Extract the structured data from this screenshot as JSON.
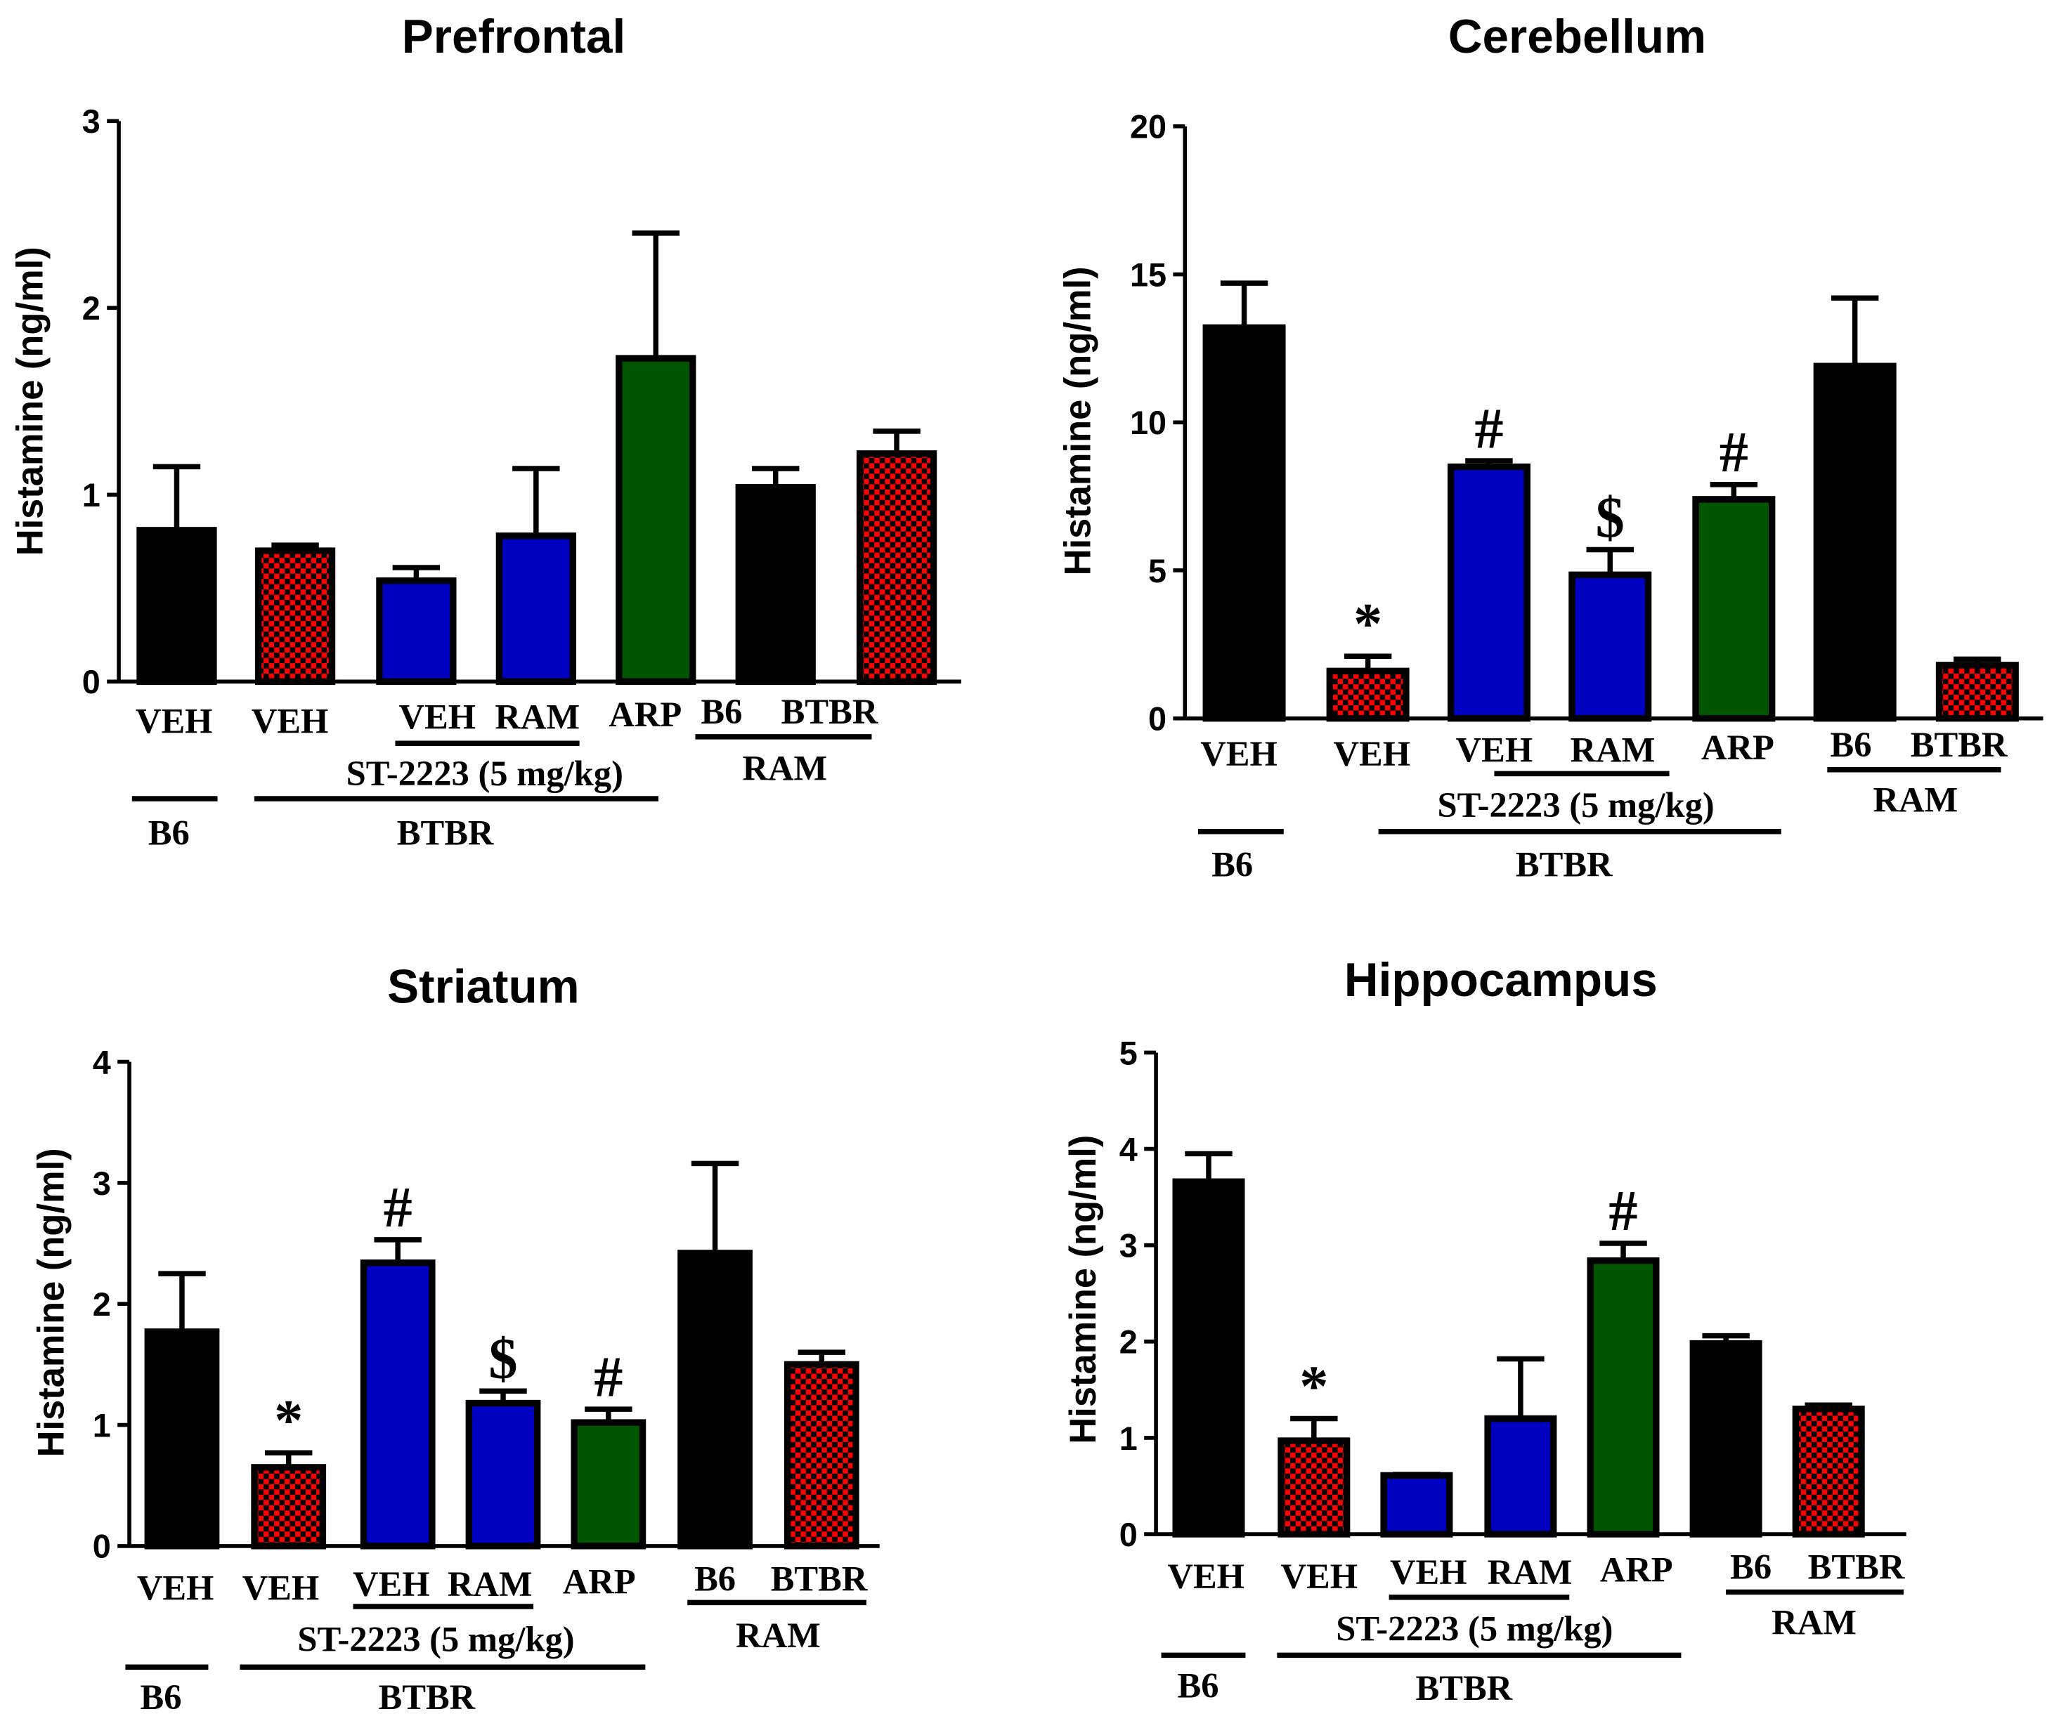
{
  "colors": {
    "black": "#000000",
    "checker_red": "#ff0000",
    "blue": "#0000c0",
    "green": "#005500"
  },
  "chart_data": [
    {
      "type": "bar",
      "title": "Prefrontal",
      "ylabel": "Histamine (ng/ml)",
      "ylim": [
        0,
        3
      ],
      "yticks": [
        0,
        1,
        2,
        3
      ],
      "categories": [
        "VEH",
        "VEH",
        "VEH",
        "RAM",
        "ARP",
        "B6",
        "BTBR"
      ],
      "fills": [
        "black",
        "checker_red",
        "blue",
        "blue",
        "green",
        "black",
        "checker_red"
      ],
      "values": [
        0.81,
        0.7,
        0.54,
        0.78,
        1.73,
        1.04,
        1.22
      ],
      "error_upper": [
        1.15,
        0.73,
        0.61,
        1.14,
        2.4,
        1.14,
        1.34
      ],
      "annotations": [
        "",
        "",
        "",
        "",
        "",
        "",
        ""
      ],
      "group_labels": {
        "st": "ST-2223 (5 mg/kg)",
        "ram": "RAM",
        "b6": "B6",
        "btbr": "BTBR"
      }
    },
    {
      "type": "bar",
      "title": "Cerebellum",
      "ylabel": "Histamine (ng/ml)",
      "ylim": [
        0,
        20
      ],
      "yticks": [
        0,
        5,
        10,
        15,
        20
      ],
      "categories": [
        "VEH",
        "VEH",
        "VEH",
        "RAM",
        "ARP",
        "B6",
        "BTBR"
      ],
      "fills": [
        "black",
        "checker_red",
        "blue",
        "blue",
        "green",
        "black",
        "checker_red"
      ],
      "values": [
        13.2,
        1.6,
        8.5,
        4.85,
        7.4,
        11.9,
        1.8
      ],
      "error_upper": [
        14.7,
        2.1,
        8.7,
        5.7,
        7.9,
        14.2,
        2.0
      ],
      "annotations": [
        "",
        "*",
        "#",
        "$",
        "#",
        "",
        ""
      ],
      "group_labels": {
        "st": "ST-2223 (5 mg/kg)",
        "ram": "RAM",
        "b6": "B6",
        "btbr": "BTBR"
      }
    },
    {
      "type": "bar",
      "title": "Striatum",
      "ylabel": "Histamine (ng/ml)",
      "ylim": [
        0,
        4
      ],
      "yticks": [
        0,
        1,
        2,
        3,
        4
      ],
      "categories": [
        "VEH",
        "VEH",
        "VEH",
        "RAM",
        "ARP",
        "B6",
        "BTBR"
      ],
      "fills": [
        "black",
        "checker_red",
        "blue",
        "blue",
        "green",
        "black",
        "checker_red"
      ],
      "values": [
        1.77,
        0.65,
        2.34,
        1.18,
        1.02,
        2.42,
        1.5
      ],
      "error_upper": [
        2.25,
        0.77,
        2.53,
        1.28,
        1.13,
        3.16,
        1.6
      ],
      "annotations": [
        "",
        "*",
        "#",
        "$",
        "#",
        "",
        ""
      ],
      "group_labels": {
        "st": "ST-2223 (5 mg/kg)",
        "ram": "RAM",
        "b6": "B6",
        "btbr": "BTBR"
      }
    },
    {
      "type": "bar",
      "title": "Hippocampus",
      "ylabel": "Histamine (ng/ml)",
      "ylim": [
        0,
        5
      ],
      "yticks": [
        0,
        1,
        2,
        3,
        4,
        5
      ],
      "categories": [
        "VEH",
        "VEH",
        "VEH",
        "RAM",
        "ARP",
        "B6",
        "BTBR"
      ],
      "fills": [
        "black",
        "checker_red",
        "blue",
        "blue",
        "green",
        "black",
        "checker_red"
      ],
      "values": [
        3.66,
        0.97,
        0.61,
        1.2,
        2.84,
        1.98,
        1.3
      ],
      "error_upper": [
        3.95,
        1.2,
        0.62,
        1.82,
        3.02,
        2.06,
        1.34
      ],
      "annotations": [
        "",
        "*",
        "",
        "",
        "#",
        "",
        ""
      ],
      "group_labels": {
        "st": "ST-2223 (5 mg/kg)",
        "ram": "RAM",
        "b6": "B6",
        "btbr": "BTBR"
      }
    }
  ]
}
